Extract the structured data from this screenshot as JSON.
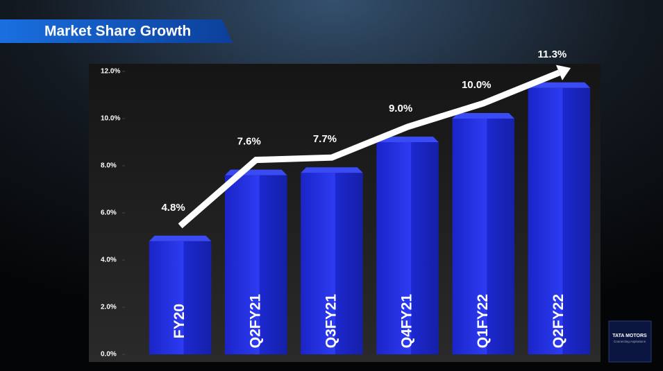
{
  "chart_data": {
    "type": "bar",
    "title": "Market Share Growth",
    "categories": [
      "FY20",
      "Q2FY21",
      "Q3FY21",
      "Q4FY21",
      "Q1FY22",
      "Q2FY22"
    ],
    "values": [
      4.8,
      7.6,
      7.7,
      9.0,
      10.0,
      11.3
    ],
    "value_labels": [
      "4.8%",
      "7.6%",
      "7.7%",
      "9.0%",
      "10.0%",
      "11.3%"
    ],
    "color": "#1f2fe0",
    "ylim": [
      0,
      12
    ],
    "yticks": [
      {
        "value": 0,
        "label": "0.0%"
      },
      {
        "value": 2,
        "label": "2.0%"
      },
      {
        "value": 4,
        "label": "4.0%"
      },
      {
        "value": 6,
        "label": "6.0%"
      },
      {
        "value": 8,
        "label": "8.0%"
      },
      {
        "value": 10,
        "label": "10.0%"
      },
      {
        "value": 12,
        "label": "12.0%"
      }
    ],
    "grid": false
  },
  "logo": {
    "name": "TATA MOTORS",
    "tagline": "Connecting Aspirations"
  }
}
